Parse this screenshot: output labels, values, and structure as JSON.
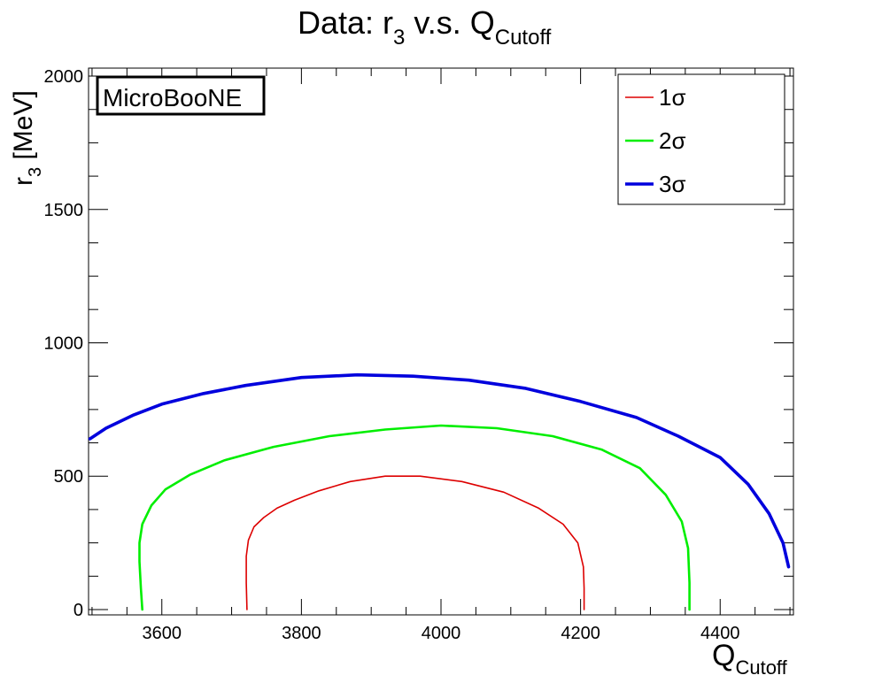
{
  "chart_data": {
    "type": "line",
    "title_main": "Data: r",
    "title_sub": "3",
    "title_mid": " v.s. Q",
    "title_sub2": "Cutoff",
    "xlabel_main": "Q",
    "xlabel_sub": "Cutoff",
    "ylabel_main": "r",
    "ylabel_sub": "3",
    "ylabel_rest": " [MeV]",
    "badge": "MicroBooNE",
    "xlim": [
      3495,
      4505
    ],
    "ylim": [
      -20,
      2030
    ],
    "xticks": [
      3600,
      3800,
      4000,
      4200,
      4400
    ],
    "yticks": [
      0,
      500,
      1000,
      1500,
      2000
    ],
    "grid": false,
    "legend_position": "top-right",
    "series": [
      {
        "name": "1σ",
        "color": "#dd0000",
        "width": 1.6,
        "x": [
          3722,
          3721,
          3721,
          3724,
          3732,
          3746,
          3765,
          3790,
          3825,
          3870,
          3920,
          3970,
          4030,
          4090,
          4140,
          4175,
          4196,
          4204,
          4205,
          4205
        ],
        "y": [
          0,
          100,
          200,
          260,
          310,
          345,
          380,
          410,
          445,
          480,
          500,
          500,
          480,
          440,
          380,
          320,
          250,
          160,
          80,
          0
        ]
      },
      {
        "name": "2σ",
        "color": "#00ee00",
        "width": 2.6,
        "x": [
          3572,
          3570,
          3568,
          3568,
          3572,
          3585,
          3605,
          3640,
          3690,
          3760,
          3840,
          3920,
          4000,
          4080,
          4160,
          4230,
          4285,
          4322,
          4345,
          4354,
          4356,
          4356
        ],
        "y": [
          0,
          80,
          180,
          250,
          320,
          390,
          450,
          505,
          560,
          610,
          650,
          675,
          690,
          680,
          650,
          600,
          530,
          430,
          330,
          230,
          100,
          0
        ]
      },
      {
        "name": "3σ",
        "color": "#0000dd",
        "width": 3.6,
        "x": [
          3497,
          3520,
          3560,
          3600,
          3660,
          3720,
          3800,
          3880,
          3960,
          4040,
          4120,
          4200,
          4280,
          4340,
          4400,
          4440,
          4470,
          4490,
          4498
        ],
        "y": [
          640,
          680,
          730,
          770,
          810,
          840,
          870,
          880,
          875,
          860,
          830,
          780,
          720,
          650,
          570,
          470,
          360,
          250,
          160
        ]
      }
    ]
  }
}
